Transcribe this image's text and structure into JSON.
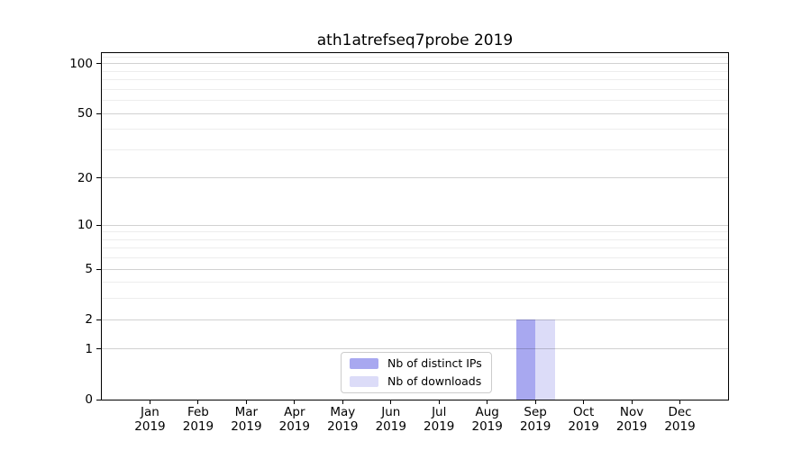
{
  "title": "ath1atrefseq7probe 2019",
  "chart_data": {
    "type": "bar",
    "title": "ath1atrefseq7probe 2019",
    "categories": [
      "Jan",
      "Feb",
      "Mar",
      "Apr",
      "May",
      "Jun",
      "Jul",
      "Aug",
      "Sep",
      "Oct",
      "Nov",
      "Dec"
    ],
    "year_label": "2019",
    "series": [
      {
        "name": "Nb of distinct IPs",
        "color": "#a8a8f0",
        "values": [
          0,
          0,
          0,
          0,
          0,
          0,
          0,
          0,
          2,
          0,
          0,
          0
        ]
      },
      {
        "name": "Nb of downloads",
        "color": "#dcdcf8",
        "values": [
          0,
          0,
          0,
          0,
          0,
          0,
          0,
          0,
          2,
          0,
          0,
          0
        ]
      }
    ],
    "xlabel": "",
    "ylabel": "",
    "y_axis": {
      "scale": "log1p",
      "ylim": [
        0,
        116
      ],
      "major_ticks": [
        0,
        1,
        2,
        5,
        10,
        20,
        50,
        100
      ],
      "minor_ticks": [
        3,
        4,
        6,
        7,
        8,
        9,
        30,
        40,
        60,
        70,
        80,
        90,
        110
      ]
    },
    "grid": "on",
    "legend": {
      "position": "bottom-center",
      "entries": [
        "Nb of distinct IPs",
        "Nb of downloads"
      ]
    },
    "colors": {
      "axis": "#000000",
      "grid_major": "rgba(0,0,0,0.18)",
      "grid_minor": "rgba(0,0,0,0.07)",
      "background": "#ffffff",
      "legend_border": "#cccccc"
    }
  }
}
